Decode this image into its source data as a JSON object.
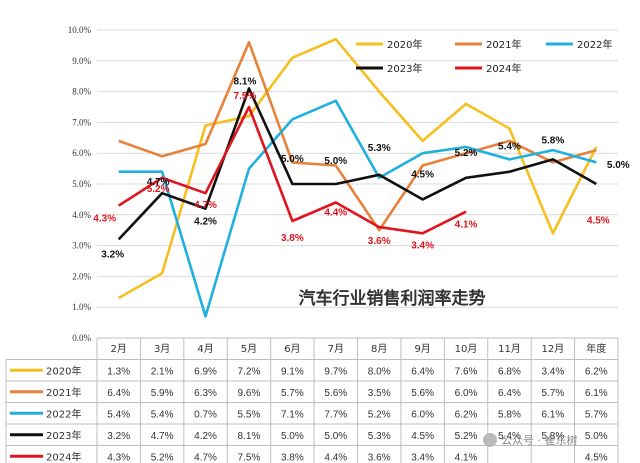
{
  "chart_data": {
    "type": "line",
    "title": "汽车行业销售利润率走势",
    "categories": [
      "2月",
      "3月",
      "4月",
      "5月",
      "6月",
      "7月",
      "8月",
      "9月",
      "10月",
      "11月",
      "12月",
      "年度"
    ],
    "ylim": [
      0,
      10
    ],
    "yticks": [
      "0.0%",
      "1.0%",
      "2.0%",
      "3.0%",
      "4.0%",
      "5.0%",
      "6.0%",
      "7.0%",
      "8.0%",
      "9.0%",
      "10.0%"
    ],
    "grid": true,
    "legend_position": "top-right",
    "series": [
      {
        "name": "2020年",
        "color": "#F5BF1E",
        "values": [
          1.3,
          2.1,
          6.9,
          7.2,
          9.1,
          9.7,
          8.0,
          6.4,
          7.6,
          6.8,
          3.4,
          6.2
        ],
        "labels": [
          "1.3%",
          "2.1%",
          "6.9%",
          "7.2%",
          "9.1%",
          "9.7%",
          "8.0%",
          "6.4%",
          "7.6%",
          "6.8%",
          "3.4%",
          "6.2%"
        ]
      },
      {
        "name": "2021年",
        "color": "#E8823A",
        "values": [
          6.4,
          5.9,
          6.3,
          9.6,
          5.7,
          5.6,
          3.5,
          5.6,
          6.0,
          6.4,
          5.7,
          6.1
        ],
        "labels": [
          "6.4%",
          "5.9%",
          "6.3%",
          "9.6%",
          "5.7%",
          "5.6%",
          "3.5%",
          "5.6%",
          "6.0%",
          "6.4%",
          "5.7%",
          "6.1%"
        ]
      },
      {
        "name": "2022年",
        "color": "#1FB0E0",
        "values": [
          5.4,
          5.4,
          0.7,
          5.5,
          7.1,
          7.7,
          5.2,
          6.0,
          6.2,
          5.8,
          6.1,
          5.7
        ],
        "labels": [
          "5.4%",
          "5.4%",
          "0.7%",
          "5.5%",
          "7.1%",
          "7.7%",
          "5.2%",
          "6.0%",
          "6.2%",
          "5.8%",
          "6.1%",
          "5.7%"
        ]
      },
      {
        "name": "2023年",
        "color": "#111111",
        "values": [
          3.2,
          4.7,
          4.2,
          8.1,
          5.0,
          5.0,
          5.3,
          4.5,
          5.2,
          5.4,
          5.8,
          5.0
        ],
        "labels": [
          "3.2%",
          "4.7%",
          "4.2%",
          "8.1%",
          "5.0%",
          "5.0%",
          "5.3%",
          "4.5%",
          "5.2%",
          "5.4%",
          "5.8%",
          "5.0%"
        ]
      },
      {
        "name": "2024年",
        "color": "#E0141E",
        "values": [
          4.3,
          5.2,
          4.7,
          7.5,
          3.8,
          4.4,
          3.6,
          3.4,
          4.1,
          null,
          null,
          null
        ],
        "labels": [
          "4.3%",
          "5.2%",
          "4.7%",
          "7.5%",
          "3.8%",
          "4.4%",
          "3.6%",
          "3.4%",
          "4.1%",
          "",
          "",
          "4.5%"
        ]
      }
    ],
    "annotations": {
      "2023年": [
        "3.2%",
        "4.7%",
        "4.2%",
        "8.1%",
        "5.0%",
        "5.0%",
        "5.3%",
        "4.5%",
        "5.2%",
        "5.4%",
        "5.8%",
        "5.0%"
      ],
      "2024年": [
        "4.3%",
        "5.2%",
        "4.7%",
        "7.5%",
        "3.8%",
        "4.4%",
        "3.6%",
        "3.4%",
        "4.1%",
        "",
        "",
        "4.5%"
      ]
    }
  },
  "watermark": "公众号 · 崔东树"
}
